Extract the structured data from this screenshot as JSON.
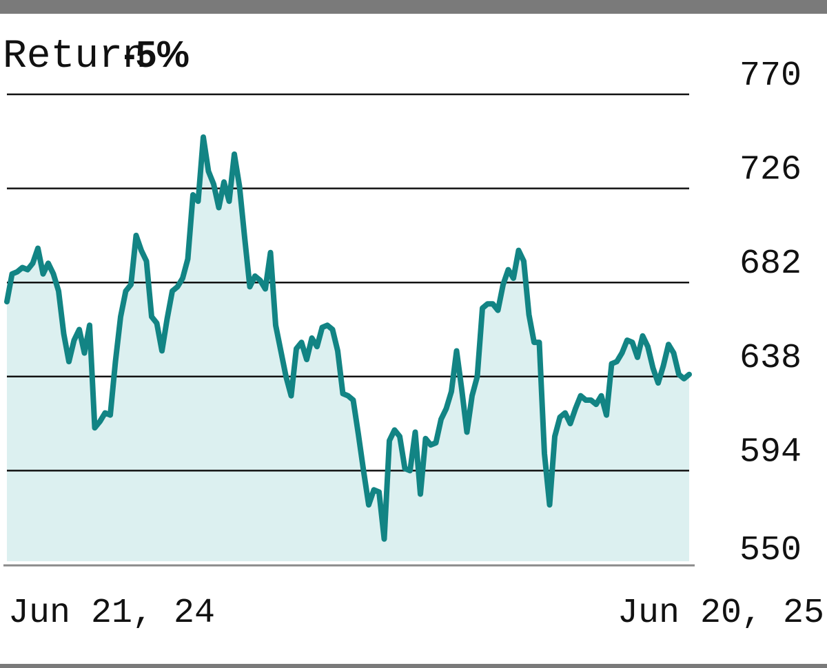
{
  "header": {
    "label": "Return",
    "value": "-5%"
  },
  "colors": {
    "line": "#128484",
    "fill": "#dcf0f0",
    "grid": "#111111",
    "axis": "#8a8a8a",
    "frame": "#7a7a7a"
  },
  "chart_data": {
    "type": "area",
    "x_ticks": [
      "Jun 21, 24",
      "Jun 20, 25"
    ],
    "y_ticks": [
      770,
      726,
      682,
      638,
      594,
      550
    ],
    "ylim": [
      550,
      770
    ],
    "grid": true,
    "series": [
      {
        "values": [
          673,
          686,
          687,
          689,
          688,
          691,
          698,
          686,
          691,
          686,
          678,
          658,
          645,
          655,
          660,
          649,
          662,
          614,
          617,
          621,
          620,
          645,
          666,
          678,
          681,
          704,
          697,
          692,
          666,
          663,
          650,
          665,
          678,
          680,
          684,
          693,
          723,
          720,
          750,
          734,
          728,
          717,
          729,
          720,
          742,
          727,
          703,
          680,
          685,
          683,
          679,
          696,
          662,
          650,
          638,
          629,
          651,
          654,
          646,
          656,
          652,
          661,
          662,
          660,
          650,
          630,
          629,
          627,
          611,
          594,
          578,
          585,
          584,
          562,
          608,
          613,
          610,
          595,
          594,
          612,
          583,
          609,
          606,
          607,
          618,
          623,
          631,
          650,
          632,
          612,
          629,
          638,
          670,
          672,
          672,
          669,
          681,
          688,
          684,
          697,
          692,
          667,
          654,
          654,
          602,
          578,
          610,
          619,
          621,
          616,
          623,
          629,
          627,
          627,
          625,
          629,
          620,
          644,
          645,
          649,
          655,
          654,
          647,
          657,
          652,
          642,
          635,
          643,
          653,
          649,
          639,
          637,
          639
        ]
      }
    ]
  }
}
